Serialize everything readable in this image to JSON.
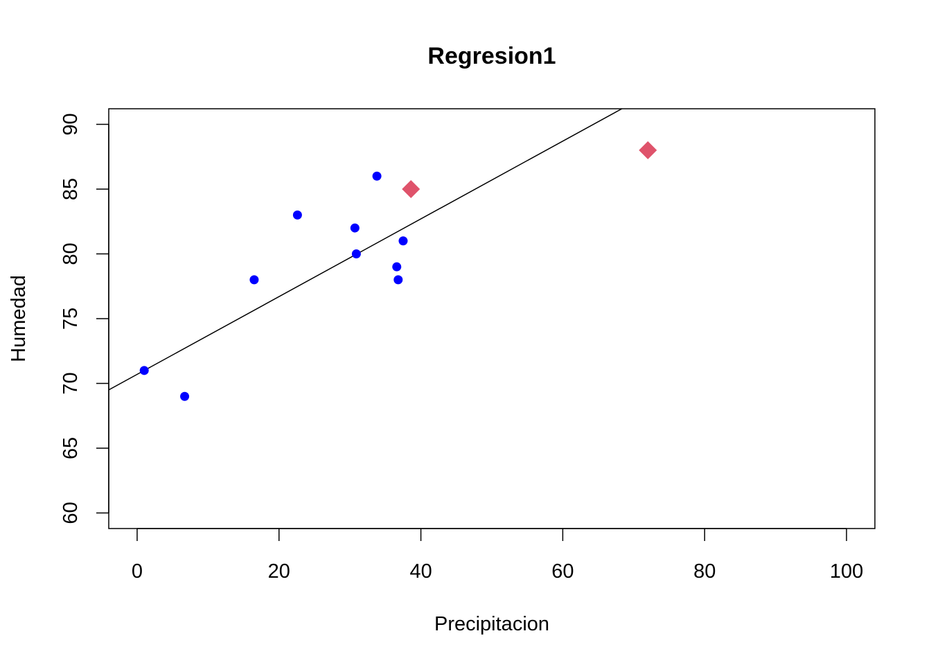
{
  "chart_data": {
    "type": "scatter",
    "title": "Regresion1",
    "xlabel": "Precipitacion",
    "ylabel": "Humedad",
    "xlim": [
      -4,
      104
    ],
    "ylim": [
      58.8,
      91.2
    ],
    "x_ticks": [
      0,
      20,
      40,
      60,
      80,
      100
    ],
    "y_ticks": [
      60,
      65,
      70,
      75,
      80,
      85,
      90
    ],
    "grid": false,
    "legend": "none",
    "series": [
      {
        "marker": "circle",
        "color": "#0000FF",
        "points": [
          {
            "x": 1.0,
            "y": 71
          },
          {
            "x": 6.7,
            "y": 69
          },
          {
            "x": 16.5,
            "y": 78
          },
          {
            "x": 22.6,
            "y": 83
          },
          {
            "x": 30.7,
            "y": 82
          },
          {
            "x": 30.9,
            "y": 80
          },
          {
            "x": 33.8,
            "y": 86
          },
          {
            "x": 36.6,
            "y": 79
          },
          {
            "x": 36.8,
            "y": 78
          },
          {
            "x": 37.5,
            "y": 81
          }
        ]
      },
      {
        "marker": "diamond",
        "color": "#DF536B",
        "points": [
          {
            "x": 38.6,
            "y": 85
          },
          {
            "x": 72.0,
            "y": 88
          }
        ]
      }
    ],
    "regression_line": {
      "intercept": 70.7,
      "slope": 0.3,
      "color": "#000000"
    }
  }
}
